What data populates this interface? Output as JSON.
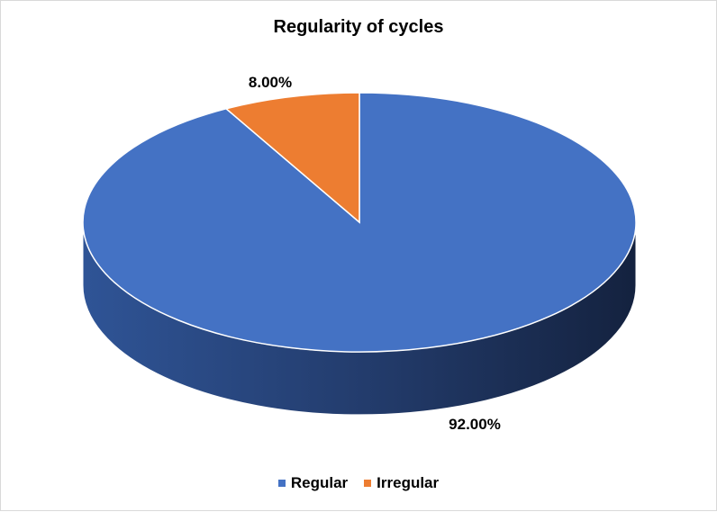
{
  "chart_data": {
    "type": "pie",
    "title": "Regularity of cycles",
    "series": [
      {
        "name": "Regular",
        "value": 92.0,
        "label": "92.00%",
        "color": "#4472C4"
      },
      {
        "name": "Irregular",
        "value": 8.0,
        "label": "8.00%",
        "color": "#ED7D31"
      }
    ],
    "style": "3d",
    "start_angle_deg": 0,
    "direction": "clockwise",
    "legend_position": "bottom"
  }
}
